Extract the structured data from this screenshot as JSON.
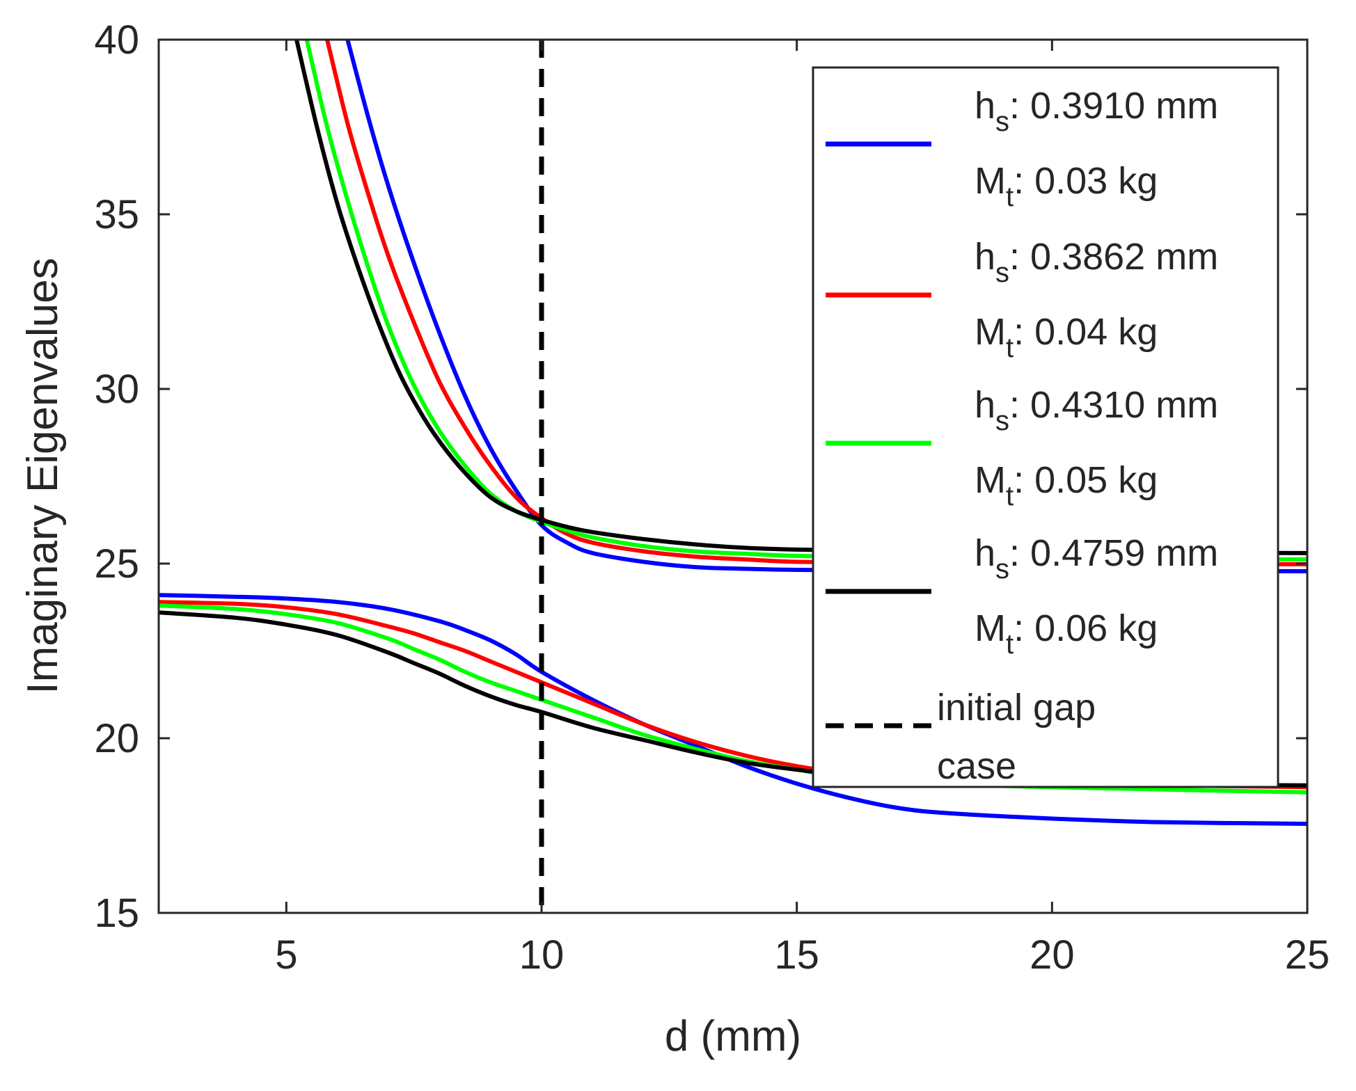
{
  "chart_data": {
    "type": "line",
    "title": "",
    "xlabel": "d (mm)",
    "ylabel": "Imaginary Eigenvalues",
    "xlim": [
      2.5,
      25
    ],
    "ylim": [
      15,
      40
    ],
    "xticks": [
      5,
      10,
      15,
      20,
      25
    ],
    "yticks": [
      15,
      20,
      25,
      30,
      35,
      40
    ],
    "grid": false,
    "legend_position": "top-right",
    "series": [
      {
        "name": "hs: 0.3910 mm Mt: 0.03 kg",
        "label_h_main": "h",
        "label_h_sub": "s",
        "label_h_val": ": 0.3910 mm",
        "label_m_main": "M",
        "label_m_sub": "t",
        "label_m_val": ": 0.03 kg",
        "color": "#0000ff",
        "upper": {
          "x": [
            6.2,
            6.6,
            7,
            7.5,
            8,
            8.5,
            9,
            9.5,
            10,
            10.5,
            11,
            12,
            13,
            14,
            15,
            17,
            20,
            25
          ],
          "y": [
            40.0,
            37.8,
            35.8,
            33.6,
            31.6,
            29.8,
            28.3,
            27.1,
            26.1,
            25.6,
            25.3,
            25.05,
            24.9,
            24.85,
            24.82,
            24.8,
            24.8,
            24.78
          ]
        },
        "lower": {
          "x": [
            2.5,
            4,
            5,
            6,
            7,
            8,
            8.5,
            9,
            9.5,
            10,
            11,
            12,
            13,
            14,
            15,
            16,
            17,
            18,
            20,
            22,
            25
          ],
          "y": [
            24.1,
            24.05,
            24.0,
            23.9,
            23.7,
            23.35,
            23.1,
            22.8,
            22.4,
            21.9,
            21.1,
            20.4,
            19.8,
            19.2,
            18.7,
            18.3,
            18.0,
            17.85,
            17.7,
            17.6,
            17.55
          ]
        }
      },
      {
        "name": "hs: 0.3862 mm Mt: 0.04 kg",
        "label_h_main": "h",
        "label_h_sub": "s",
        "label_h_val": ": 0.3862 mm",
        "label_m_main": "M",
        "label_m_sub": "t",
        "label_m_val": ": 0.04 kg",
        "color": "#ff0000",
        "upper": {
          "x": [
            5.8,
            6.2,
            6.6,
            7,
            7.5,
            8,
            8.5,
            9,
            9.5,
            10,
            10.5,
            11,
            12,
            13,
            14,
            15,
            17,
            20,
            25
          ],
          "y": [
            40.0,
            37.6,
            35.6,
            33.8,
            31.9,
            30.2,
            28.9,
            27.8,
            26.9,
            26.3,
            25.85,
            25.6,
            25.35,
            25.2,
            25.12,
            25.05,
            25.02,
            25.0,
            24.98
          ]
        },
        "lower": {
          "x": [
            2.5,
            4,
            5,
            6,
            7,
            7.5,
            8,
            8.5,
            9,
            9.5,
            10,
            11,
            12,
            13,
            14,
            15,
            16,
            18,
            20,
            25
          ],
          "y": [
            23.9,
            23.85,
            23.75,
            23.55,
            23.2,
            23.0,
            22.75,
            22.5,
            22.2,
            21.9,
            21.6,
            21.0,
            20.4,
            19.9,
            19.5,
            19.2,
            19.0,
            18.8,
            18.7,
            18.6
          ]
        }
      },
      {
        "name": "hs: 0.4310 mm Mt: 0.05 kg",
        "label_h_main": "h",
        "label_h_sub": "s",
        "label_h_val": ": 0.4310 mm",
        "label_m_main": "M",
        "label_m_sub": "t",
        "label_m_val": ": 0.05 kg",
        "color": "#00ff00",
        "upper": {
          "x": [
            5.4,
            5.8,
            6.2,
            6.6,
            7,
            7.5,
            8,
            8.5,
            9,
            9.5,
            10,
            10.5,
            11,
            12,
            13,
            14,
            15,
            17,
            20,
            25
          ],
          "y": [
            40.0,
            37.5,
            35.4,
            33.5,
            31.8,
            30.1,
            28.8,
            27.8,
            27.0,
            26.5,
            26.2,
            25.95,
            25.75,
            25.5,
            25.35,
            25.28,
            25.22,
            25.18,
            25.15,
            25.12
          ]
        },
        "lower": {
          "x": [
            2.5,
            4,
            5,
            6,
            7,
            7.5,
            8,
            8.5,
            9,
            9.5,
            10,
            11,
            12,
            13,
            14,
            15,
            16,
            18,
            20,
            25
          ],
          "y": [
            23.8,
            23.7,
            23.55,
            23.3,
            22.85,
            22.55,
            22.25,
            21.9,
            21.6,
            21.35,
            21.1,
            20.6,
            20.1,
            19.7,
            19.35,
            19.1,
            18.9,
            18.7,
            18.6,
            18.45
          ]
        }
      },
      {
        "name": "hs: 0.4759 mm Mt: 0.06 kg",
        "label_h_main": "h",
        "label_h_sub": "s",
        "label_h_val": ": 0.4759 mm",
        "label_m_main": "M",
        "label_m_sub": "t",
        "label_m_val": ": 0.06 kg",
        "color": "#000000",
        "upper": {
          "x": [
            5.2,
            5.6,
            6,
            6.4,
            6.8,
            7.2,
            7.6,
            8,
            8.5,
            9,
            9.5,
            10,
            10.5,
            11,
            12,
            13,
            14,
            15,
            17,
            20,
            25
          ],
          "y": [
            40.0,
            37.5,
            35.3,
            33.5,
            31.9,
            30.5,
            29.4,
            28.5,
            27.6,
            26.9,
            26.5,
            26.25,
            26.05,
            25.9,
            25.7,
            25.55,
            25.45,
            25.4,
            25.35,
            25.32,
            25.3
          ]
        },
        "lower": {
          "x": [
            2.5,
            4,
            5,
            6,
            7,
            7.5,
            8,
            8.5,
            9,
            9.5,
            10,
            11,
            12,
            13,
            14,
            15,
            16,
            18,
            20,
            25
          ],
          "y": [
            23.6,
            23.45,
            23.25,
            22.95,
            22.45,
            22.15,
            21.85,
            21.5,
            21.2,
            20.95,
            20.75,
            20.3,
            19.95,
            19.6,
            19.3,
            19.1,
            18.95,
            18.8,
            18.7,
            18.65
          ]
        }
      }
    ],
    "reference_line": {
      "name": "initial gap case",
      "label_line1": "initial gap",
      "label_line2": "case",
      "x": 10,
      "style": "dashed",
      "color": "#000000"
    }
  }
}
